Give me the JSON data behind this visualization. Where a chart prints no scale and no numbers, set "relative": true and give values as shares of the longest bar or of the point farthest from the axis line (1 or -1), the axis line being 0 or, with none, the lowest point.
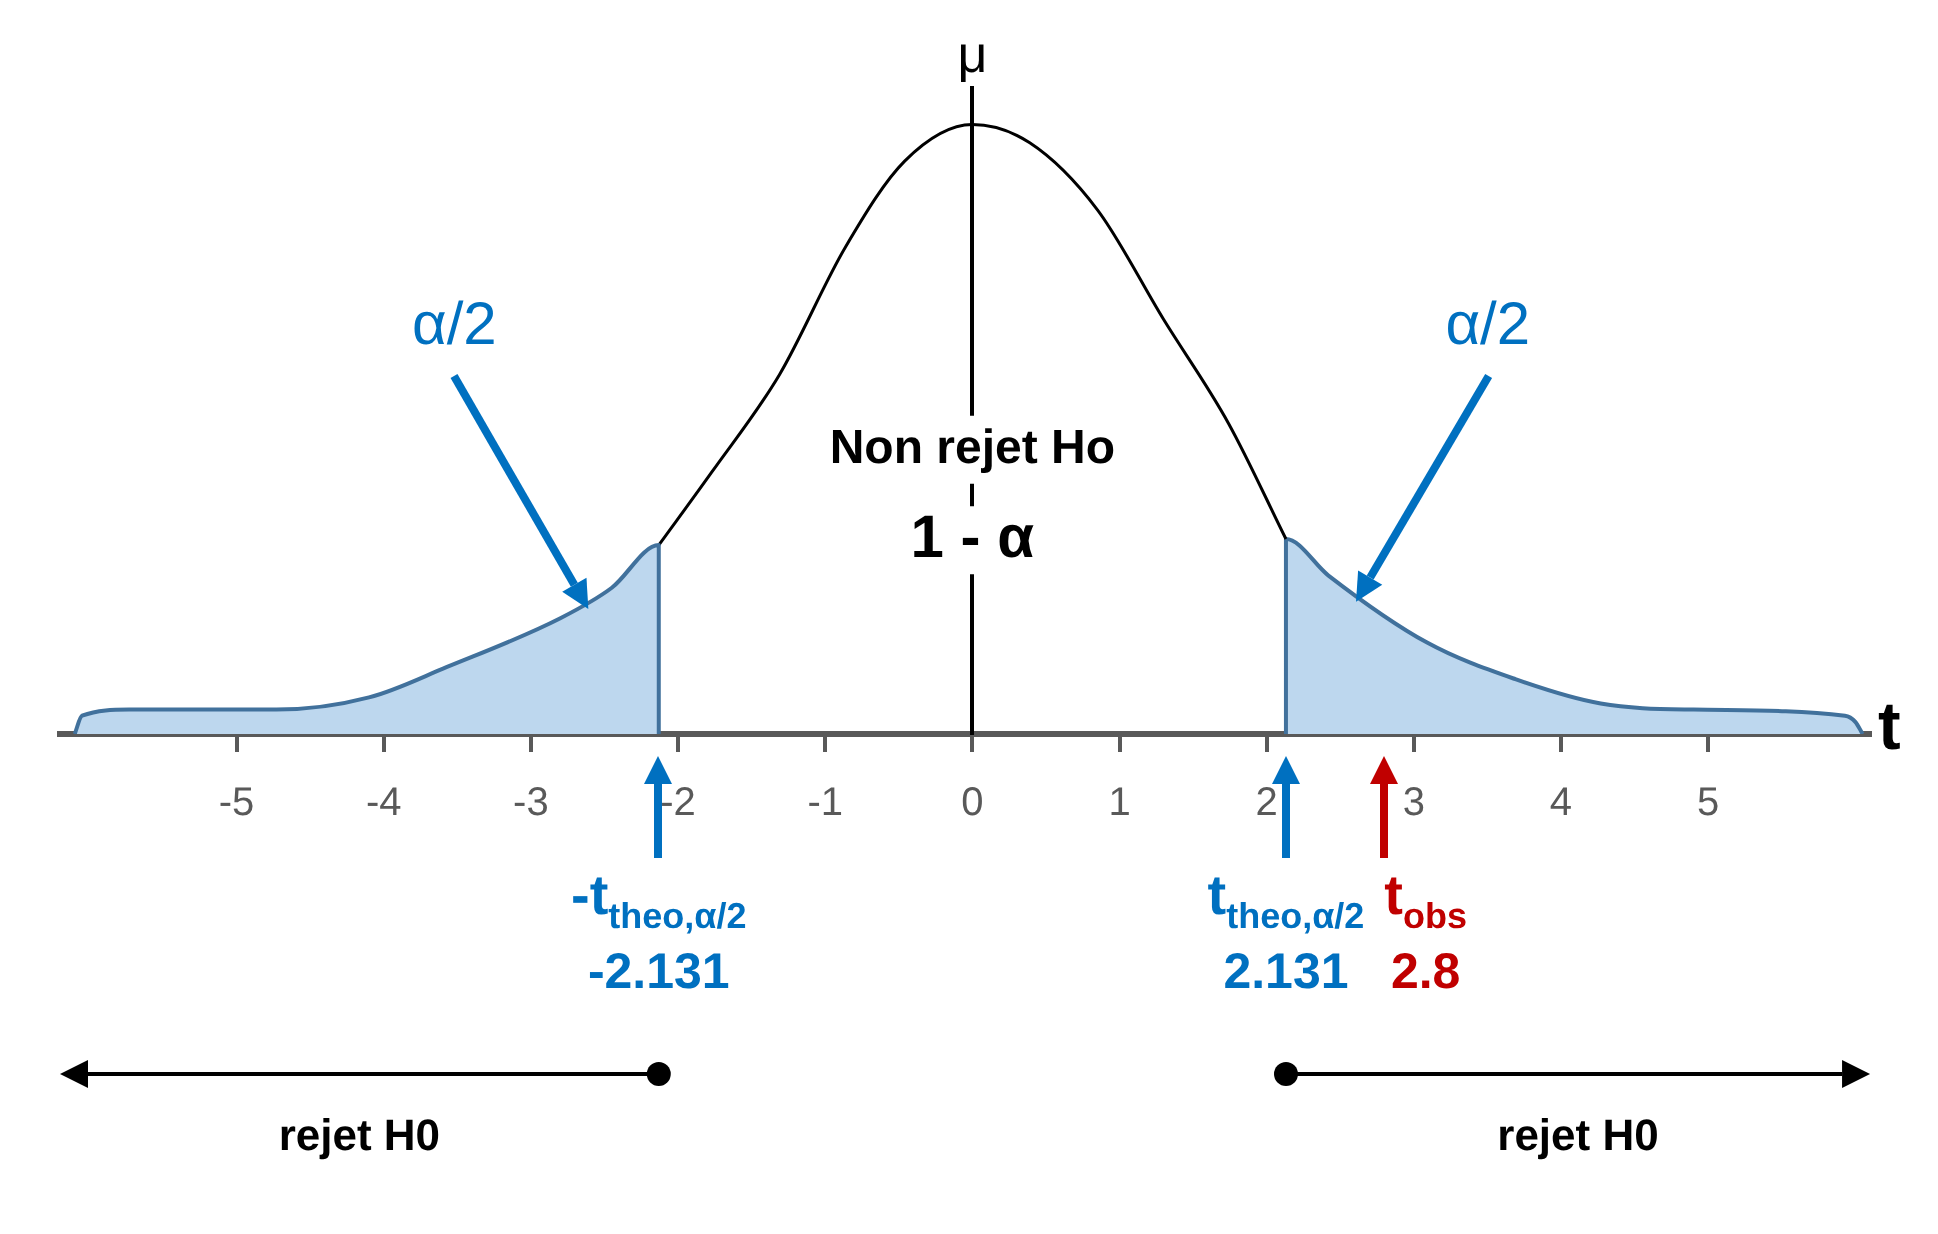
{
  "chart_data": {
    "type": "line",
    "xlabel": "t",
    "ylabel": "μ",
    "relative": true,
    "xlim": [
      -6.2,
      6.1
    ],
    "xticks": [
      -5,
      -4,
      -3,
      -2,
      -1,
      0,
      1,
      2,
      3,
      4,
      5
    ],
    "series": [
      {
        "type": "area",
        "color": "#bdd7ee",
        "x": [
          -6.1,
          -6.05,
          -5.73,
          -4.73,
          -4.1,
          -3.57,
          -2.8,
          -2.45,
          -2.131,
          -2.131
        ],
        "values": [
          0,
          0.03,
          0.04,
          0.04,
          0.06,
          0.11,
          0.19,
          0.24,
          0.31,
          0
        ]
      },
      {
        "color": "#000000",
        "x": [
          -2.131,
          -1.77,
          -1.31,
          -0.86,
          -0.46,
          0,
          0.39,
          0.85,
          1.3,
          1.74,
          2.131
        ],
        "values": [
          0.31,
          0.43,
          0.59,
          0.8,
          0.94,
          1,
          0.97,
          0.86,
          0.68,
          0.51,
          0.32
        ]
      },
      {
        "type": "area",
        "color": "#bdd7ee",
        "x": [
          2.131,
          2.131,
          2.42,
          3.09,
          3.69,
          4.27,
          4.9,
          5.93,
          6.0,
          6.05
        ],
        "values": [
          0,
          0.32,
          0.26,
          0.15,
          0.09,
          0.05,
          0.04,
          0.03,
          0.02,
          0
        ]
      }
    ],
    "ref_lines": [
      {
        "axis": "x",
        "value": -2.131,
        "label": "-t$_{theo,α/2}$",
        "color": "#0070c0"
      },
      {
        "axis": "x",
        "value": 2.131,
        "label": "t$_{theo,α/2}$",
        "color": "#0070c0"
      },
      {
        "axis": "x",
        "value": 2.8,
        "label": "t$_{obs}$",
        "color": "#c00000"
      }
    ],
    "annotations": [
      "α/2",
      "α/2",
      "Non rejet Ho",
      "1 - α",
      "-2.131",
      "2.131",
      "2.8",
      "rejet H0",
      "rejet H0"
    ],
    "legend": false
  }
}
